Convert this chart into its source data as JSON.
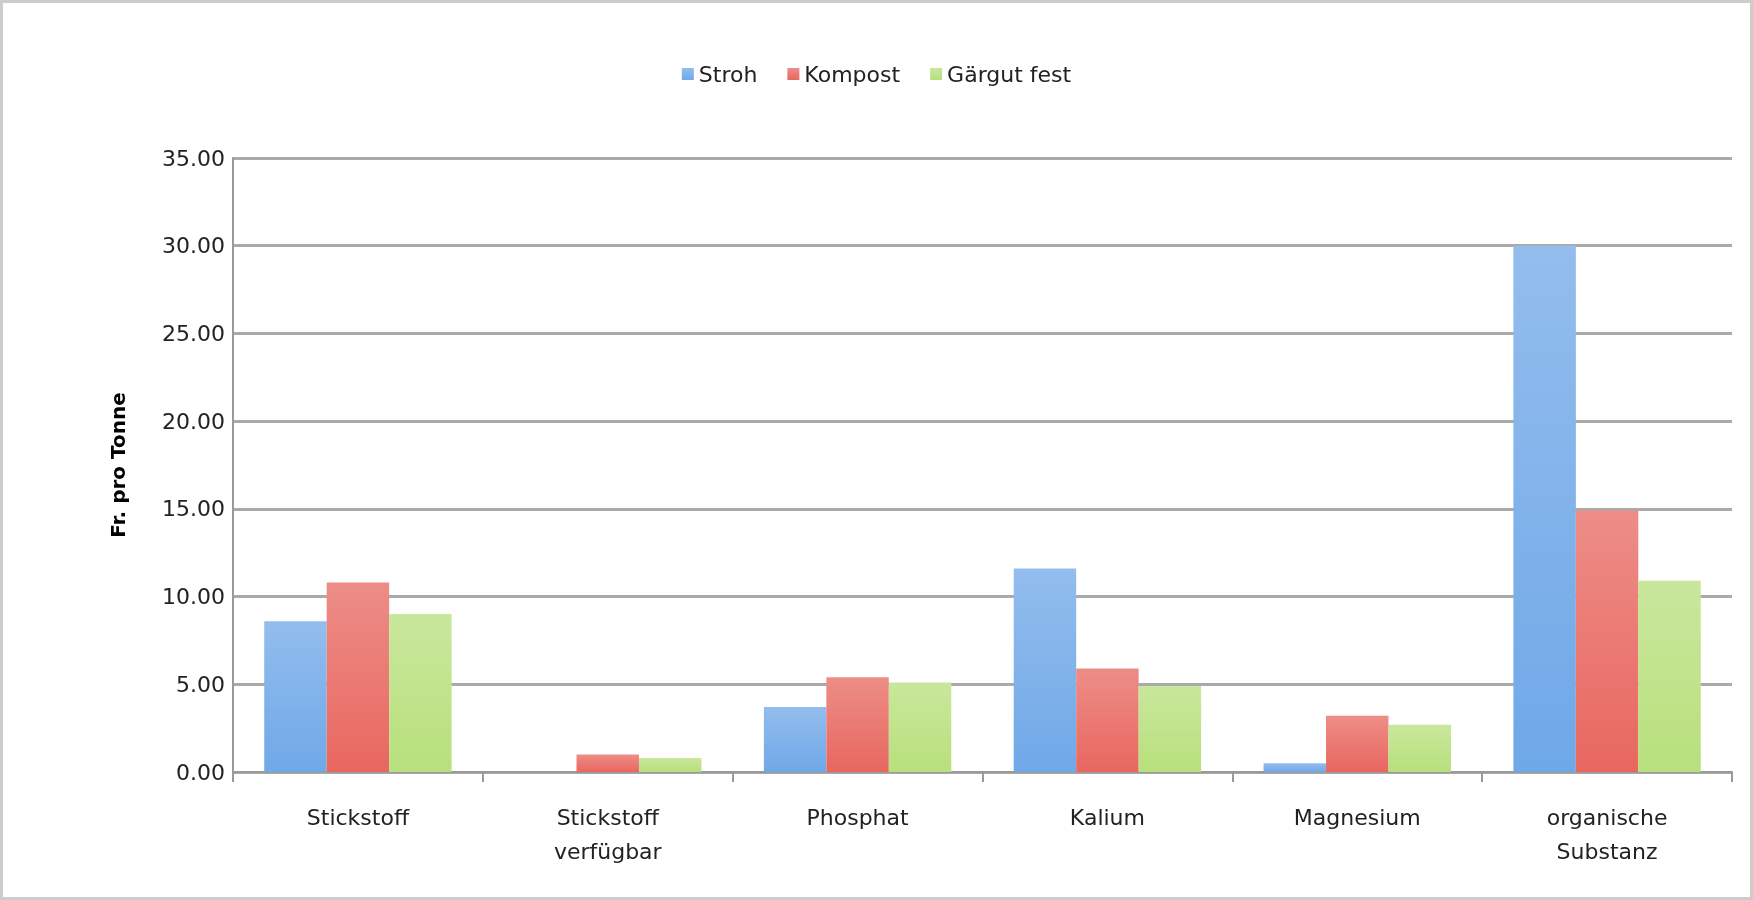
{
  "chart_data": {
    "type": "bar",
    "ylabel": "Fr. pro Tonne",
    "categories": [
      "Stickstoff",
      "Stickstoff\nverfügbar",
      "Phosphat",
      "Kalium",
      "Magnesium",
      "organische\nSubstanz"
    ],
    "series": [
      {
        "name": "Stroh",
        "color": "#6fa8e8",
        "values": [
          8.6,
          0,
          3.7,
          11.6,
          0.5,
          30.0
        ]
      },
      {
        "name": "Kompost",
        "color": "#e8675f",
        "values": [
          10.8,
          1.0,
          5.4,
          5.9,
          3.2,
          14.9
        ]
      },
      {
        "name": "Gärgut fest",
        "color": "#b8e07c",
        "values": [
          9.0,
          0.8,
          5.1,
          4.9,
          2.7,
          10.9
        ]
      }
    ],
    "ylim": [
      0,
      35
    ],
    "yticks": [
      {
        "value": 0,
        "label": "0.00"
      },
      {
        "value": 5,
        "label": "5.00"
      },
      {
        "value": 10,
        "label": "10.00"
      },
      {
        "value": 15,
        "label": "15.00"
      },
      {
        "value": 20,
        "label": "20.00"
      },
      {
        "value": 25,
        "label": "25.00"
      },
      {
        "value": 30,
        "label": "30.00"
      },
      {
        "value": 35,
        "label": "35.00"
      }
    ],
    "grid": "y",
    "legend": "top"
  }
}
